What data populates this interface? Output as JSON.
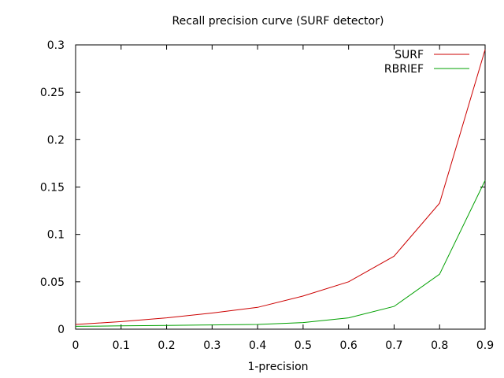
{
  "chart_data": {
    "type": "line",
    "title": "Recall precision curve (SURF detector)",
    "xlabel": "1-precision",
    "ylabel": "",
    "xlim": [
      0,
      0.9
    ],
    "ylim": [
      0,
      0.3
    ],
    "xticks": [
      0,
      0.1,
      0.2,
      0.3,
      0.4,
      0.5,
      0.6,
      0.7,
      0.8,
      0.9
    ],
    "xtick_labels": [
      "0",
      "0.1",
      "0.2",
      "0.3",
      "0.4",
      "0.5",
      "0.6",
      "0.7",
      "0.8",
      "0.9"
    ],
    "yticks": [
      0,
      0.05,
      0.1,
      0.15,
      0.2,
      0.25,
      0.3
    ],
    "ytick_labels": [
      "0",
      "0.05",
      "0.1",
      "0.15",
      "0.2",
      "0.25",
      "0.3"
    ],
    "grid": false,
    "legend_position": "top-right",
    "x": [
      0,
      0.1,
      0.2,
      0.3,
      0.4,
      0.5,
      0.6,
      0.7,
      0.8,
      0.9
    ],
    "series": [
      {
        "name": "SURF",
        "color": "#cc0000",
        "values": [
          0.005,
          0.008,
          0.012,
          0.017,
          0.023,
          0.035,
          0.05,
          0.077,
          0.133,
          0.295
        ]
      },
      {
        "name": "RBRIEF",
        "color": "#00a000",
        "values": [
          0.003,
          0.0035,
          0.004,
          0.0045,
          0.005,
          0.007,
          0.012,
          0.024,
          0.058,
          0.157
        ]
      }
    ]
  }
}
